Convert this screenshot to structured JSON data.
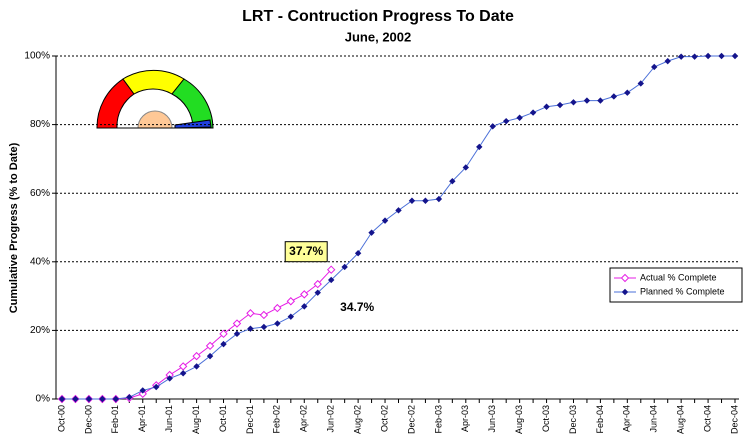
{
  "chart_data": {
    "type": "line",
    "title": "LRT - Contruction Progress To Date",
    "subtitle": "June, 2002",
    "y_label": "Cumulative Progress (% to Date)",
    "categories": [
      "Oct-00",
      null,
      "Dec-00",
      null,
      "Feb-01",
      null,
      "Apr-01",
      null,
      "Jun-01",
      null,
      "Aug-01",
      null,
      "Oct-01",
      null,
      "Dec-01",
      null,
      "Feb-02",
      null,
      "Apr-02",
      null,
      "Jun-02",
      null,
      "Aug-02",
      null,
      "Oct-02",
      null,
      "Dec-02",
      null,
      "Feb-03",
      null,
      "Apr-03",
      null,
      "Jun-03",
      null,
      "Aug-03",
      null,
      "Oct-03",
      null,
      "Dec-03",
      null,
      "Feb-04",
      null,
      "Apr-04",
      null,
      "Jun-04",
      null,
      "Aug-04",
      null,
      "Oct-04",
      null,
      "Dec-04"
    ],
    "series": [
      {
        "name": "Actual % Complete",
        "color": "#e61ee6",
        "values": [
          0,
          0,
          0,
          0,
          0,
          0.3,
          1.5,
          4,
          7,
          9.5,
          12.5,
          15.5,
          19,
          22,
          25,
          24.5,
          26.5,
          28.5,
          30.5,
          33.5,
          37.7,
          null,
          null,
          null,
          null,
          null,
          null,
          null,
          null,
          null,
          null,
          null,
          null,
          null,
          null,
          null,
          null,
          null,
          null,
          null,
          null,
          null,
          null,
          null,
          null,
          null,
          null,
          null,
          null,
          null,
          null
        ],
        "value_labels": [
          null,
          null,
          null,
          null,
          null,
          null,
          null,
          null,
          null,
          null,
          null,
          null,
          null,
          null,
          null,
          null,
          null,
          null,
          null,
          null,
          "37.7%",
          null,
          null,
          null,
          null,
          null,
          null,
          null,
          null,
          null,
          null,
          null,
          null,
          null,
          null,
          null,
          null,
          null,
          null,
          null,
          null,
          null,
          null,
          null,
          null,
          null,
          null,
          null,
          null,
          null,
          null
        ]
      },
      {
        "name": "Planned % Complete",
        "color": "#14148c",
        "values": [
          0,
          0,
          0,
          0,
          0,
          0.5,
          2.5,
          3.5,
          6,
          7.5,
          9.5,
          12.5,
          16,
          19,
          20.5,
          21,
          22,
          24,
          27,
          31,
          34.7,
          38.5,
          42.5,
          48.5,
          52,
          55,
          57.8,
          57.8,
          58.3,
          63.5,
          67.5,
          73.5,
          79.5,
          81,
          82,
          83.5,
          85.2,
          85.7,
          86.5,
          87,
          87,
          88.2,
          89.3,
          92,
          96.8,
          98.5,
          99.8,
          99.8,
          100,
          100,
          100
        ],
        "value_labels": [
          null,
          null,
          null,
          null,
          null,
          null,
          null,
          null,
          null,
          null,
          null,
          null,
          null,
          null,
          null,
          null,
          null,
          null,
          null,
          null,
          "34.7%",
          null,
          null,
          null,
          null,
          null,
          null,
          null,
          null,
          null,
          null,
          null,
          null,
          null,
          null,
          null,
          null,
          null,
          null,
          null,
          null,
          null,
          null,
          null,
          null,
          null,
          null,
          null,
          null,
          null,
          null
        ]
      }
    ],
    "ylim": [
      0,
      100
    ],
    "yticks": [
      {
        "value": 0,
        "label": "0%"
      },
      {
        "value": 20,
        "label": "20%"
      },
      {
        "value": 40,
        "label": "40%"
      },
      {
        "value": 60,
        "label": "60%"
      },
      {
        "value": 80,
        "label": "80%"
      },
      {
        "value": 100,
        "label": "100%"
      }
    ],
    "grid": true,
    "legend": "right"
  }
}
